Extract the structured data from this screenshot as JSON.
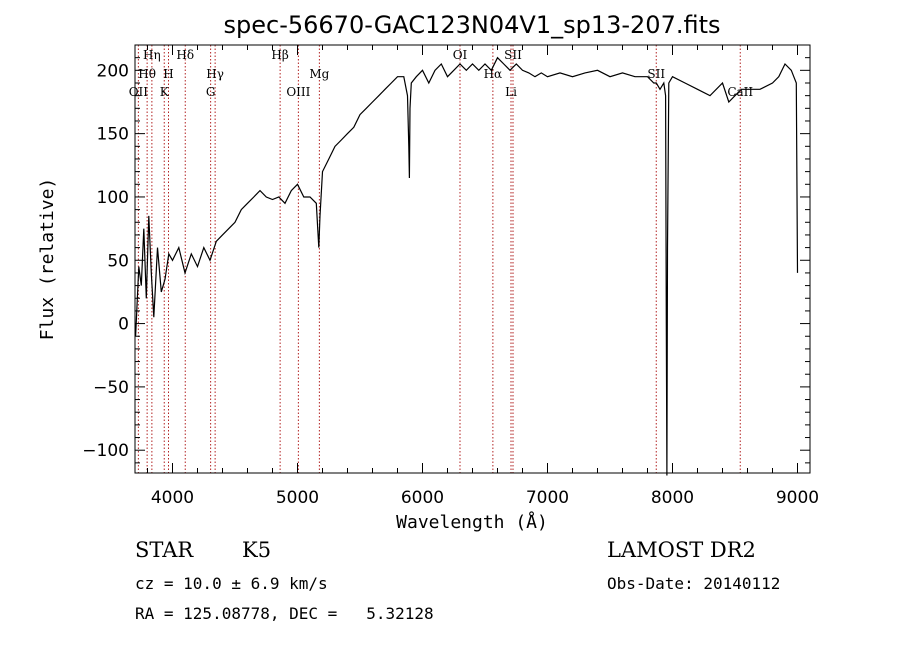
{
  "chart_data": {
    "type": "line",
    "title": "spec-56670-GAC123N04V1_sp13-207.fits",
    "xlabel": "Wavelength (Å)",
    "ylabel": "Flux (relative)",
    "xlim": [
      3700,
      9100
    ],
    "ylim": [
      -118,
      220
    ],
    "x_ticks": [
      4000,
      5000,
      6000,
      7000,
      8000,
      9000
    ],
    "y_ticks": [
      -100,
      -50,
      0,
      50,
      100,
      150,
      200
    ],
    "x_tick_labels": [
      "4000",
      "5000",
      "6000",
      "7000",
      "8000",
      "9000"
    ],
    "y_tick_labels": [
      "−100",
      "−50",
      "0",
      "50",
      "100",
      "150",
      "200"
    ],
    "grid": false,
    "series": [
      {
        "x": [
          3705,
          3730,
          3750,
          3770,
          3790,
          3810,
          3830,
          3850,
          3880,
          3910,
          3940,
          3970,
          4000,
          4050,
          4100,
          4150,
          4200,
          4250,
          4300,
          4350,
          4400,
          4450,
          4500,
          4550,
          4600,
          4650,
          4700,
          4750,
          4800,
          4850,
          4900,
          4950,
          5000,
          5050,
          5100,
          5150,
          5170,
          5180,
          5200,
          5250,
          5300,
          5350,
          5400,
          5450,
          5500,
          5550,
          5600,
          5650,
          5700,
          5750,
          5800,
          5850,
          5880,
          5890,
          5895,
          5900,
          5910,
          5950,
          6000,
          6050,
          6100,
          6150,
          6200,
          6250,
          6300,
          6350,
          6400,
          6450,
          6500,
          6550,
          6600,
          6650,
          6700,
          6750,
          6800,
          6850,
          6900,
          6950,
          7000,
          7100,
          7200,
          7300,
          7400,
          7500,
          7600,
          7700,
          7800,
          7850,
          7870,
          7900,
          7930,
          7945,
          7950,
          7955,
          7960,
          7970,
          8000,
          8100,
          8200,
          8300,
          8400,
          8450,
          8500,
          8550,
          8600,
          8700,
          8800,
          8850,
          8900,
          8950,
          8970,
          8990,
          9000
        ],
        "values": [
          -10,
          45,
          30,
          75,
          20,
          85,
          40,
          5,
          60,
          25,
          35,
          55,
          50,
          60,
          40,
          55,
          45,
          60,
          50,
          65,
          70,
          75,
          80,
          90,
          95,
          100,
          105,
          100,
          98,
          100,
          95,
          105,
          110,
          100,
          100,
          95,
          60,
          85,
          120,
          130,
          140,
          145,
          150,
          155,
          165,
          170,
          175,
          180,
          185,
          190,
          195,
          195,
          180,
          140,
          115,
          170,
          190,
          195,
          200,
          190,
          200,
          205,
          195,
          200,
          205,
          200,
          205,
          200,
          205,
          200,
          210,
          205,
          200,
          205,
          200,
          198,
          195,
          198,
          195,
          198,
          195,
          198,
          200,
          195,
          198,
          195,
          195,
          190,
          190,
          185,
          190,
          180,
          0,
          -120,
          60,
          190,
          195,
          190,
          185,
          180,
          190,
          175,
          180,
          185,
          185,
          185,
          190,
          195,
          205,
          200,
          195,
          190,
          40
        ]
      }
    ],
    "spectral_lines": [
      {
        "name": "Hη",
        "x": 3835,
        "row": 0
      },
      {
        "name": "Hθ",
        "x": 3797,
        "row": 1
      },
      {
        "name": "OII",
        "x": 3727,
        "row": 2
      },
      {
        "name": "Hδ",
        "x": 4102,
        "row": 0
      },
      {
        "name": "H",
        "x": 3968,
        "row": 1
      },
      {
        "name": "K",
        "x": 3934,
        "row": 2
      },
      {
        "name": "Hγ",
        "x": 4341,
        "row": 1
      },
      {
        "name": "G",
        "x": 4305,
        "row": 2
      },
      {
        "name": "Hβ",
        "x": 4861,
        "row": 0
      },
      {
        "name": "Mg",
        "x": 5175,
        "row": 1
      },
      {
        "name": "OIII",
        "x": 5007,
        "row": 2
      },
      {
        "name": "OI",
        "x": 6300,
        "row": 0
      },
      {
        "name": "SII",
        "x": 6724,
        "row": 0
      },
      {
        "name": "Hα",
        "x": 6563,
        "row": 1
      },
      {
        "name": "Li",
        "x": 6708,
        "row": 2
      },
      {
        "name": "SII",
        "x": 7870,
        "row": 1
      },
      {
        "name": "CaII",
        "x": 8542,
        "row": 2
      }
    ]
  },
  "info": {
    "object_class": "STAR",
    "subclass": "K5",
    "survey": "LAMOST DR2",
    "cz": "cz = 10.0 ± 6.9 km/s",
    "obs_date": "Obs-Date: 20140112",
    "coords": "RA = 125.08778, DEC =   5.32128"
  }
}
